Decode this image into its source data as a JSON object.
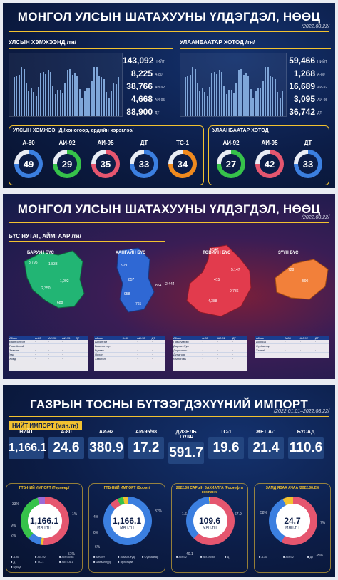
{
  "panel1": {
    "title": "МОНГОЛ УЛСЫН ШАТАХУУНЫ ҮЛДЭГДЭЛ, НӨӨЦ",
    "date": "/2022.08.22/",
    "country_tag": "УЛСЫН ХЭМЖЭЭНД /тн/",
    "ub_tag": "УЛААНБААТАР ХОТОД /тн/",
    "country_stats": [
      "143,092",
      "8,225",
      "38,766",
      "4,668",
      "88,900"
    ],
    "country_keys": [
      "НИЙТ",
      "А-80",
      "АИ-92",
      "АИ-95",
      "ДТ"
    ],
    "ub_stats": [
      "59,466",
      "1,268",
      "16,689",
      "3,095",
      "36,742"
    ],
    "ub_keys": [
      "НИЙТ",
      "А-80",
      "АИ-92",
      "АИ-95",
      "ДТ"
    ],
    "country_days_label": "УЛСЫН ХЭМЖЭЭНД /хоногоор, ердийн хэрэглээ/",
    "ub_days_label": "УЛААНБААТАР ХОТОД",
    "country_days": [
      {
        "label": "А-80",
        "value": "49",
        "color": "#3b7fe0"
      },
      {
        "label": "АИ-92",
        "value": "29",
        "color": "#36c24a"
      },
      {
        "label": "АИ-95",
        "value": "35",
        "color": "#e5566f"
      },
      {
        "label": "ДТ",
        "value": "33",
        "color": "#3b7fe0"
      },
      {
        "label": "ТС-1",
        "value": "34",
        "color": "#f08a1e"
      }
    ],
    "ub_days": [
      {
        "label": "АИ-92",
        "value": "27",
        "color": "#36c24a"
      },
      {
        "label": "АИ-95",
        "value": "42",
        "color": "#e5566f"
      },
      {
        "label": "ДТ",
        "value": "33",
        "color": "#3b7fe0"
      }
    ]
  },
  "panel2": {
    "title": "МОНГОЛ УЛСЫН ШАТАХУУНЫ ҮЛДЭГДЭЛ, НӨӨЦ",
    "date": "/2022.08.22/",
    "tag": "БҮС НУТАГ, АЙМГААР /тн/",
    "regions": [
      {
        "name": "БАРУУН БҮС",
        "color": "#22b574",
        "nums": [
          "3,795",
          "1,833",
          "1,092",
          "2,350",
          "688"
        ]
      },
      {
        "name": "ХАНГАЙН БҮС",
        "color": "#2f68d4",
        "nums": [
          "929",
          "857",
          "854",
          "958",
          "765",
          "2,444"
        ]
      },
      {
        "name": "ТӨВИЙН БҮС",
        "color": "#e23b4d",
        "nums": [
          "4,527",
          "5,147",
          "415",
          "4,388",
          "9,736"
        ]
      },
      {
        "name": "ЗҮҮН БҮС",
        "color": "#f2803a",
        "nums": [
          "728",
          "590"
        ]
      }
    ]
  },
  "panel3": {
    "title": "ГАЗРЫН ТОСНЫ БҮТЭЭГДЭХҮҮНИЙ ИМПОРТ",
    "date": "/2022.01.01–2022.08.22/",
    "tag": "НИЙТ ИМПОРТ (мян.тн)",
    "imports": [
      {
        "label": "НИЙТ",
        "value": "1,166.1"
      },
      {
        "label": "А-80",
        "value": "24.6"
      },
      {
        "label": "АИ-92",
        "value": "380.9"
      },
      {
        "label": "АИ-95/98",
        "value": "17.2"
      },
      {
        "label": "ДИЗЕЛЬ ТҮЛШ",
        "value": "591.7"
      },
      {
        "label": "ТС-1",
        "value": "19.6"
      },
      {
        "label": "ЖЕТ А-1",
        "value": "21.4"
      },
      {
        "label": "БУСАД",
        "value": "110.6"
      }
    ],
    "donuts": [
      {
        "title": "ГТБ-НИЙ ИМПОРТ /Төрлөөр/",
        "value": "1,166.1",
        "unit": "МЯН.ТН"
      },
      {
        "title": "ГТБ-НИЙ ИМПОРТ /Боомт/",
        "value": "1,166.1",
        "unit": "МЯН.ТН"
      },
      {
        "title": "2022.08 САРЫН ЗАХИАЛГА /Роснефть компани/",
        "value": "109.6",
        "unit": "МЯН.ТН"
      },
      {
        "title": "ЗАМД ЯВАА АЧАА /2022.08.23/",
        "value": "24.7",
        "unit": "МЯН.ТН"
      }
    ],
    "donut_pcts": [
      [
        "33%",
        "1%",
        "9%",
        "2%",
        "51%"
      ],
      [
        "4%",
        "87%",
        "0%",
        "6%"
      ],
      [
        "1.6",
        "67.9",
        "40.1"
      ],
      [
        "58%",
        "7%",
        "35%"
      ]
    ],
    "legends": [
      [
        "А-80",
        "АИ-92",
        "АИ-95/98",
        "ДТ",
        "ТС-1",
        "ЖЕТ А-1",
        "Бусад"
      ],
      [
        "Бичигт",
        "Замын-Үүд",
        "Сүхбаатар",
        "Цагааннуур",
        "Эрээнцав"
      ],
      [
        "АИ-92",
        "АИ-95/98",
        "ДТ"
      ],
      [
        "А-80",
        "АИ-92",
        "ДТ"
      ]
    ]
  },
  "colors": {
    "accent": "#f2c230",
    "navy": "#0c1d47",
    "blue": "#3b7fe0",
    "green": "#36c24a",
    "red": "#e5566f",
    "orange": "#f08a1e"
  }
}
